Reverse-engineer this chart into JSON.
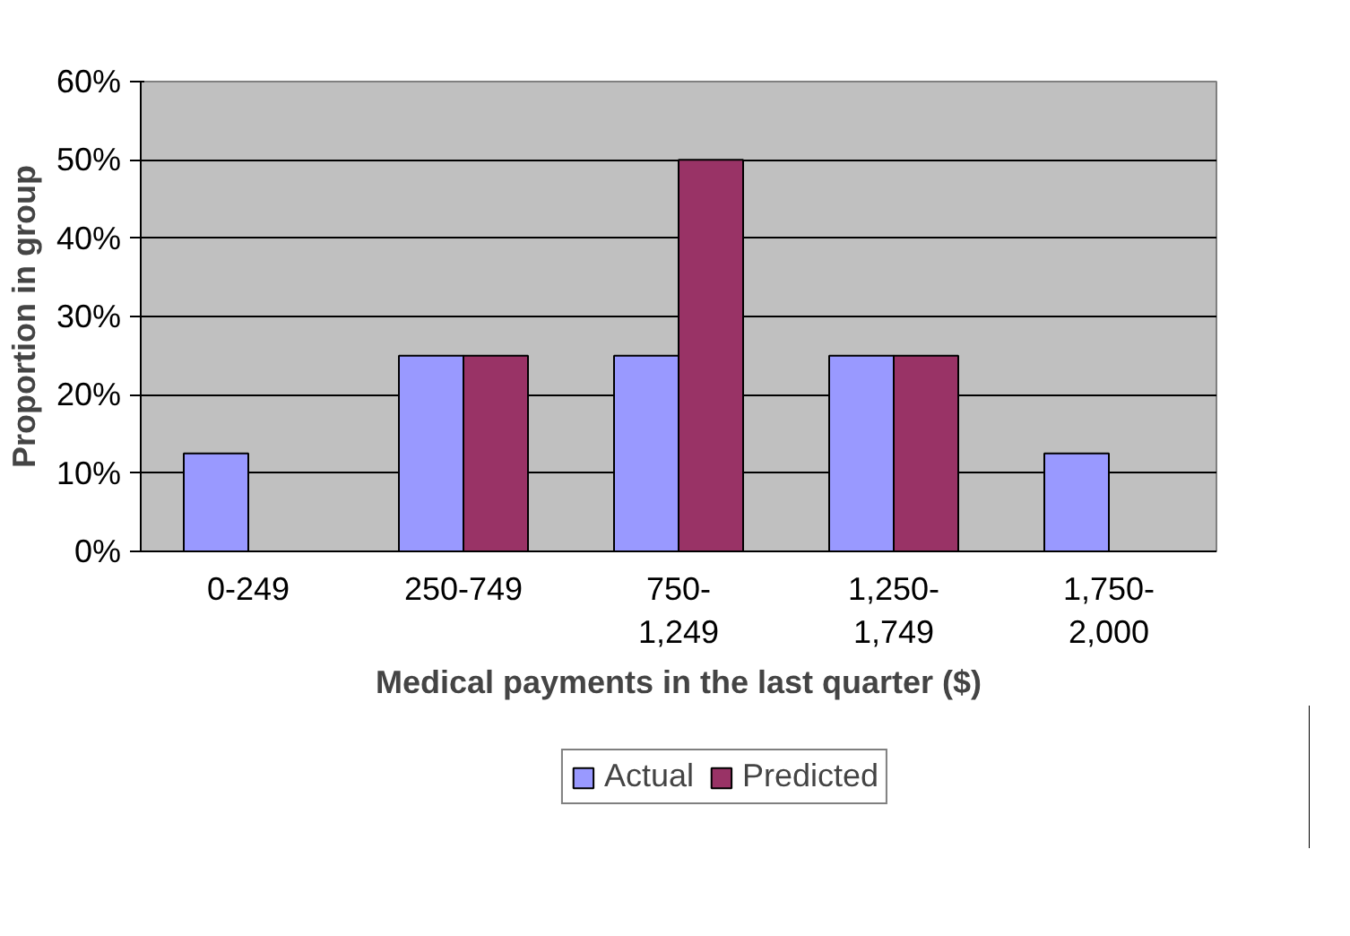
{
  "chart_data": {
    "type": "bar",
    "xlabel": "Medical payments in the last quarter ($)",
    "ylabel": "Proportion in group",
    "categories": [
      "0-249",
      "250-749",
      "750-\n1,249",
      "1,250-\n1,749",
      "1,750-\n2,000"
    ],
    "series": [
      {
        "name": "Actual",
        "color": "#9999ff",
        "values": [
          12.5,
          25,
          25,
          25,
          12.5
        ]
      },
      {
        "name": "Predicted",
        "color": "#993366",
        "values": [
          0,
          25,
          50,
          25,
          0
        ]
      }
    ],
    "ylim": [
      0,
      60
    ],
    "yticks": [
      {
        "value": 0,
        "label": "0%"
      },
      {
        "value": 10,
        "label": "10%"
      },
      {
        "value": 20,
        "label": "20%"
      },
      {
        "value": 30,
        "label": "30%"
      },
      {
        "value": 40,
        "label": "40%"
      },
      {
        "value": 50,
        "label": "50%"
      },
      {
        "value": 60,
        "label": "60%"
      }
    ],
    "grid": "y",
    "legend": "bottom"
  }
}
